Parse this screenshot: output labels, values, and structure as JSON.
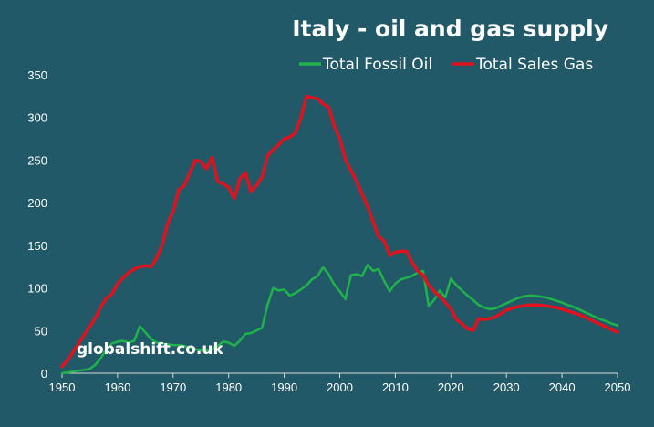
{
  "chart_data": {
    "type": "line",
    "title": "Italy - oil and gas supply",
    "watermark": "globalshift.co.uk",
    "xlabel": "",
    "ylabel": "",
    "xlim": [
      1950,
      2050
    ],
    "ylim": [
      0,
      350
    ],
    "x_ticks": [
      1950,
      1960,
      1970,
      1980,
      1990,
      2000,
      2010,
      2020,
      2030,
      2040,
      2050
    ],
    "y_ticks": [
      0,
      50,
      100,
      150,
      200,
      250,
      300,
      350
    ],
    "grid": false,
    "legend_position": "top-right",
    "series": [
      {
        "name": "Total Fossil Oil",
        "color": "#1fb34a",
        "points": [
          [
            1950,
            0
          ],
          [
            1951,
            1
          ],
          [
            1952,
            2
          ],
          [
            1953,
            3
          ],
          [
            1954,
            4
          ],
          [
            1955,
            5
          ],
          [
            1956,
            10
          ],
          [
            1957,
            18
          ],
          [
            1958,
            28
          ],
          [
            1959,
            35
          ],
          [
            1960,
            37
          ],
          [
            1961,
            38
          ],
          [
            1962,
            36
          ],
          [
            1963,
            38
          ],
          [
            1964,
            55
          ],
          [
            1965,
            48
          ],
          [
            1966,
            40
          ],
          [
            1967,
            36
          ],
          [
            1968,
            35
          ],
          [
            1969,
            34
          ],
          [
            1970,
            33
          ],
          [
            1971,
            33
          ],
          [
            1972,
            32
          ],
          [
            1973,
            30
          ],
          [
            1974,
            28
          ],
          [
            1975,
            27
          ],
          [
            1976,
            27
          ],
          [
            1977,
            28
          ],
          [
            1978,
            32
          ],
          [
            1979,
            37
          ],
          [
            1980,
            36
          ],
          [
            1981,
            32
          ],
          [
            1982,
            38
          ],
          [
            1983,
            46
          ],
          [
            1984,
            47
          ],
          [
            1985,
            50
          ],
          [
            1986,
            53
          ],
          [
            1987,
            80
          ],
          [
            1988,
            100
          ],
          [
            1989,
            97
          ],
          [
            1990,
            98
          ],
          [
            1991,
            91
          ],
          [
            1992,
            94
          ],
          [
            1993,
            98
          ],
          [
            1994,
            103
          ],
          [
            1995,
            110
          ],
          [
            1996,
            114
          ],
          [
            1997,
            124
          ],
          [
            1998,
            116
          ],
          [
            1999,
            104
          ],
          [
            2000,
            96
          ],
          [
            2001,
            87
          ],
          [
            2002,
            115
          ],
          [
            2003,
            116
          ],
          [
            2004,
            114
          ],
          [
            2005,
            127
          ],
          [
            2006,
            120
          ],
          [
            2007,
            122
          ],
          [
            2008,
            108
          ],
          [
            2009,
            96
          ],
          [
            2010,
            105
          ],
          [
            2011,
            110
          ],
          [
            2012,
            112
          ],
          [
            2013,
            114
          ],
          [
            2014,
            118
          ],
          [
            2015,
            120
          ],
          [
            2016,
            79
          ],
          [
            2017,
            86
          ],
          [
            2018,
            97
          ],
          [
            2019,
            89
          ],
          [
            2020,
            111
          ],
          [
            2021,
            103
          ],
          [
            2022,
            97
          ],
          [
            2023,
            91
          ],
          [
            2024,
            86
          ],
          [
            2025,
            80
          ],
          [
            2026,
            77
          ],
          [
            2027,
            75
          ],
          [
            2028,
            76
          ],
          [
            2029,
            79
          ],
          [
            2030,
            82
          ],
          [
            2031,
            85
          ],
          [
            2032,
            88
          ],
          [
            2033,
            90
          ],
          [
            2034,
            91
          ],
          [
            2035,
            91
          ],
          [
            2036,
            90
          ],
          [
            2037,
            89
          ],
          [
            2038,
            87
          ],
          [
            2039,
            85
          ],
          [
            2040,
            83
          ],
          [
            2041,
            80
          ],
          [
            2042,
            78
          ],
          [
            2043,
            75
          ],
          [
            2044,
            72
          ],
          [
            2045,
            69
          ],
          [
            2046,
            66
          ],
          [
            2047,
            63
          ],
          [
            2048,
            61
          ],
          [
            2049,
            58
          ],
          [
            2050,
            56
          ]
        ]
      },
      {
        "name": "Total Sales Gas",
        "color": "#e0121e",
        "points": [
          [
            1950,
            8
          ],
          [
            1951,
            15
          ],
          [
            1952,
            25
          ],
          [
            1953,
            35
          ],
          [
            1954,
            45
          ],
          [
            1955,
            55
          ],
          [
            1956,
            65
          ],
          [
            1957,
            78
          ],
          [
            1958,
            88
          ],
          [
            1959,
            93
          ],
          [
            1960,
            105
          ],
          [
            1961,
            112
          ],
          [
            1962,
            118
          ],
          [
            1963,
            122
          ],
          [
            1964,
            125
          ],
          [
            1965,
            126
          ],
          [
            1966,
            125
          ],
          [
            1967,
            135
          ],
          [
            1968,
            150
          ],
          [
            1969,
            175
          ],
          [
            1970,
            190
          ],
          [
            1971,
            215
          ],
          [
            1972,
            220
          ],
          [
            1973,
            235
          ],
          [
            1974,
            250
          ],
          [
            1975,
            248
          ],
          [
            1976,
            240
          ],
          [
            1977,
            253
          ],
          [
            1978,
            225
          ],
          [
            1979,
            222
          ],
          [
            1980,
            218
          ],
          [
            1981,
            205
          ],
          [
            1982,
            228
          ],
          [
            1983,
            235
          ],
          [
            1984,
            213
          ],
          [
            1985,
            220
          ],
          [
            1986,
            230
          ],
          [
            1987,
            255
          ],
          [
            1988,
            262
          ],
          [
            1989,
            268
          ],
          [
            1990,
            275
          ],
          [
            1991,
            277
          ],
          [
            1992,
            282
          ],
          [
            1993,
            300
          ],
          [
            1994,
            325
          ],
          [
            1995,
            323
          ],
          [
            1996,
            322
          ],
          [
            1997,
            316
          ],
          [
            1998,
            312
          ],
          [
            1999,
            290
          ],
          [
            2000,
            275
          ],
          [
            2001,
            250
          ],
          [
            2002,
            238
          ],
          [
            2003,
            225
          ],
          [
            2004,
            210
          ],
          [
            2005,
            195
          ],
          [
            2006,
            178
          ],
          [
            2007,
            160
          ],
          [
            2008,
            155
          ],
          [
            2009,
            138
          ],
          [
            2010,
            142
          ],
          [
            2011,
            143
          ],
          [
            2012,
            143
          ],
          [
            2013,
            130
          ],
          [
            2014,
            120
          ],
          [
            2015,
            115
          ],
          [
            2016,
            103
          ],
          [
            2017,
            96
          ],
          [
            2018,
            90
          ],
          [
            2019,
            83
          ],
          [
            2020,
            75
          ],
          [
            2021,
            63
          ],
          [
            2022,
            58
          ],
          [
            2023,
            52
          ],
          [
            2024,
            50
          ],
          [
            2025,
            64
          ],
          [
            2026,
            63
          ],
          [
            2027,
            64
          ],
          [
            2028,
            66
          ],
          [
            2029,
            70
          ],
          [
            2030,
            74
          ],
          [
            2031,
            76
          ],
          [
            2032,
            78
          ],
          [
            2033,
            79
          ],
          [
            2034,
            80
          ],
          [
            2035,
            80
          ],
          [
            2036,
            80
          ],
          [
            2037,
            79
          ],
          [
            2038,
            78
          ],
          [
            2039,
            77
          ],
          [
            2040,
            75
          ],
          [
            2041,
            73
          ],
          [
            2042,
            71
          ],
          [
            2043,
            69
          ],
          [
            2044,
            66
          ],
          [
            2045,
            63
          ],
          [
            2046,
            60
          ],
          [
            2047,
            57
          ],
          [
            2048,
            54
          ],
          [
            2049,
            51
          ],
          [
            2050,
            48
          ]
        ]
      }
    ]
  }
}
